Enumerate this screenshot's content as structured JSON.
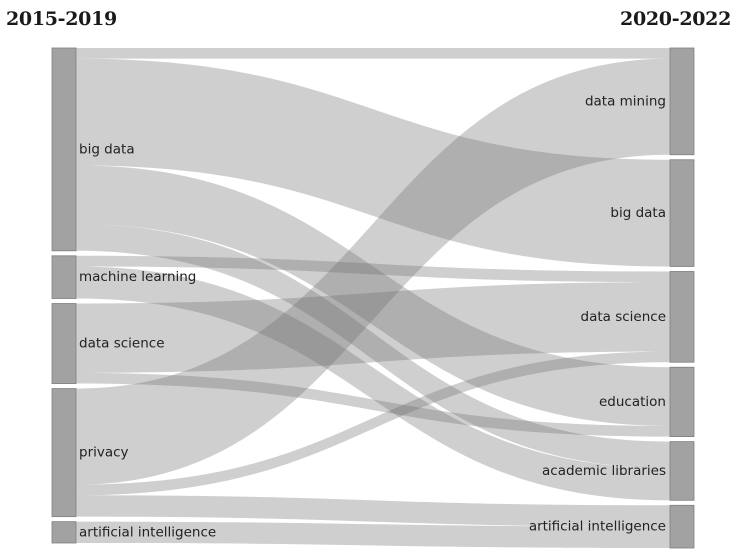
{
  "headers": {
    "left": "2015-2019",
    "right": "2020-2022"
  },
  "nodes": {
    "left": [
      {
        "id": "l_big_data",
        "label": "big data",
        "value": 38
      },
      {
        "id": "l_machine_learning",
        "label": "machine learning",
        "value": 8
      },
      {
        "id": "l_data_science",
        "label": "data science",
        "value": 15
      },
      {
        "id": "l_privacy",
        "label": "privacy",
        "value": 24
      },
      {
        "id": "l_artificial_intelligence",
        "label": "artificial intelligence",
        "value": 4
      }
    ],
    "right": [
      {
        "id": "r_data_mining",
        "label": "data mining",
        "value": 20
      },
      {
        "id": "r_big_data",
        "label": "big data",
        "value": 20
      },
      {
        "id": "r_data_science",
        "label": "data science",
        "value": 17
      },
      {
        "id": "r_education",
        "label": "education",
        "value": 13
      },
      {
        "id": "r_academic_libraries",
        "label": "academic libraries",
        "value": 11
      },
      {
        "id": "r_artificial_intelligence",
        "label": "artificial intelligence",
        "value": 8
      }
    ]
  },
  "links": [
    {
      "source": "l_big_data",
      "target": "r_data_mining",
      "value": 2
    },
    {
      "source": "l_big_data",
      "target": "r_big_data",
      "value": 20
    },
    {
      "source": "l_big_data",
      "target": "r_education",
      "value": 11
    },
    {
      "source": "l_big_data",
      "target": "r_academic_libraries",
      "value": 5
    },
    {
      "source": "l_machine_learning",
      "target": "r_data_science",
      "value": 2
    },
    {
      "source": "l_machine_learning",
      "target": "r_academic_libraries",
      "value": 6
    },
    {
      "source": "l_data_science",
      "target": "r_data_science",
      "value": 13
    },
    {
      "source": "l_data_science",
      "target": "r_education",
      "value": 2
    },
    {
      "source": "l_privacy",
      "target": "r_data_mining",
      "value": 18
    },
    {
      "source": "l_privacy",
      "target": "r_data_science",
      "value": 2
    },
    {
      "source": "l_privacy",
      "target": "r_artificial_intelligence",
      "value": 4
    },
    {
      "source": "l_artificial_intelligence",
      "target": "r_artificial_intelligence",
      "value": 4
    }
  ],
  "colors": {
    "node": "#a2a2a2",
    "node_stroke": "#7f7f7f",
    "link": "#6e6e6e",
    "link_opacity": 0.33,
    "text": "#222222",
    "background": "#ffffff"
  }
}
